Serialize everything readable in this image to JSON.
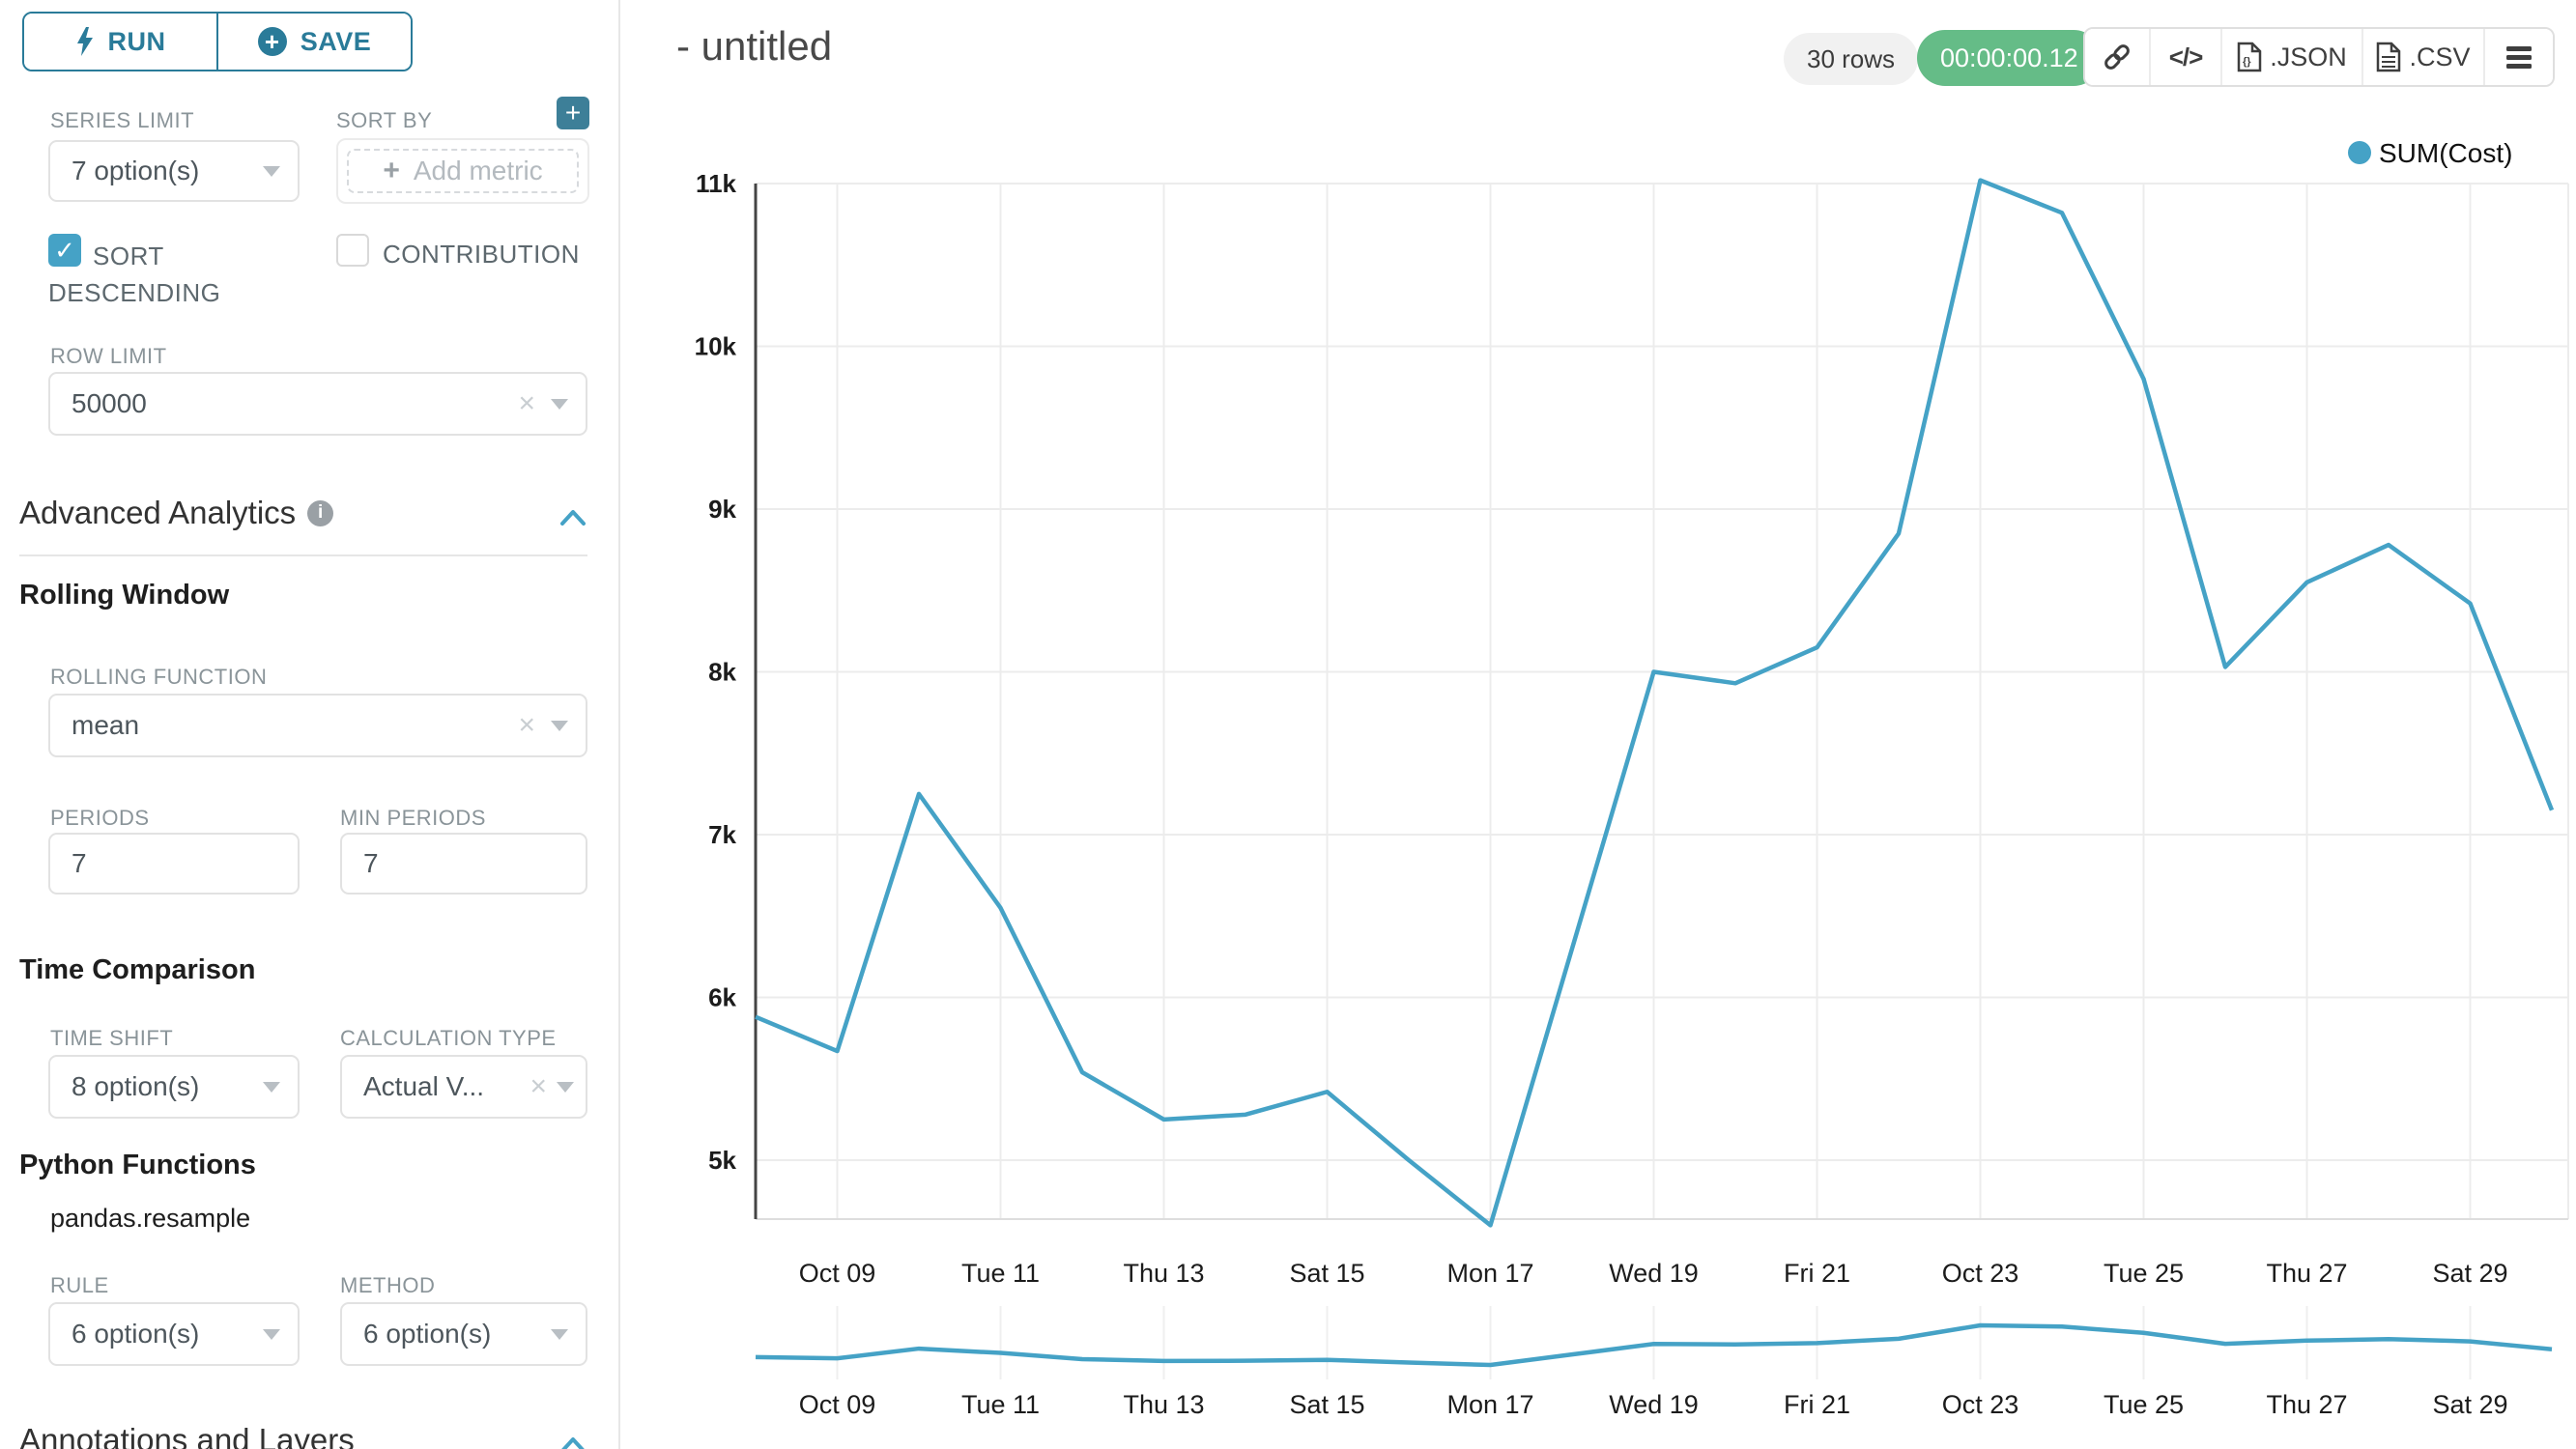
{
  "sidebar": {
    "run_label": "RUN",
    "save_label": "SAVE",
    "series_limit_label": "SERIES LIMIT",
    "series_limit_value": "7 option(s)",
    "sort_by_label": "SORT BY",
    "add_metric_label": "Add metric",
    "sort_descending_label": "SORT DESCENDING",
    "contribution_label": "CONTRIBUTION",
    "row_limit_label": "ROW LIMIT",
    "row_limit_value": "50000",
    "advanced_analytics_title": "Advanced Analytics",
    "rolling_window_title": "Rolling Window",
    "rolling_function_label": "ROLLING FUNCTION",
    "rolling_function_value": "mean",
    "periods_label": "PERIODS",
    "periods_value": "7",
    "min_periods_label": "MIN PERIODS",
    "min_periods_value": "7",
    "time_comparison_title": "Time Comparison",
    "time_shift_label": "TIME SHIFT",
    "time_shift_value": "8 option(s)",
    "calculation_type_label": "CALCULATION TYPE",
    "calculation_type_value": "Actual V...",
    "python_functions_title": "Python Functions",
    "pandas_resample_label": "pandas.resample",
    "rule_label": "RULE",
    "rule_value": "6 option(s)",
    "method_label": "METHOD",
    "method_value": "6 option(s)",
    "annotations_title": "Annotations and Layers"
  },
  "header": {
    "title": "- untitled",
    "rows_badge": "30 rows",
    "timer_badge": "00:00:00.12",
    "json_label": ".JSON",
    "csv_label": ".CSV"
  },
  "colors": {
    "accent_blue": "#45a2c6",
    "button_teal": "#2a7b99",
    "success_green": "#65bc87",
    "pill_gray": "#f1f1f1",
    "label_gray": "#8a9499",
    "text_dark": "#323232",
    "gridline": "#ececec",
    "axis_line": "#444444"
  },
  "chart_data": {
    "type": "line",
    "title": "",
    "legend": [
      {
        "name": "SUM(Cost)",
        "color": "#45a2c6"
      }
    ],
    "x": [
      "Oct 08",
      "Oct 09",
      "Oct 10",
      "Oct 11",
      "Oct 12",
      "Oct 13",
      "Oct 14",
      "Oct 15",
      "Oct 16",
      "Oct 17",
      "Oct 18",
      "Oct 19",
      "Oct 20",
      "Oct 21",
      "Oct 22",
      "Oct 23",
      "Oct 24",
      "Oct 25",
      "Oct 26",
      "Oct 27",
      "Oct 28",
      "Oct 29",
      "Oct 30"
    ],
    "series": [
      {
        "name": "SUM(Cost)",
        "values": [
          5880,
          5670,
          7250,
          6550,
          5540,
          5250,
          5280,
          5420,
          5000,
          4600,
          6300,
          8000,
          7930,
          8150,
          8850,
          11020,
          10820,
          9800,
          8030,
          8550,
          8780,
          8420,
          7150
        ]
      }
    ],
    "x_tick_labels": [
      "Oct 09",
      "Tue 11",
      "Thu 13",
      "Sat 15",
      "Mon 17",
      "Wed 19",
      "Fri 21",
      "Oct 23",
      "Tue 25",
      "Thu 27",
      "Sat 29"
    ],
    "x_tick_indices": [
      1,
      3,
      5,
      7,
      9,
      11,
      13,
      15,
      17,
      19,
      21
    ],
    "y_tick_labels": [
      "5k",
      "6k",
      "7k",
      "8k",
      "9k",
      "10k",
      "11k"
    ],
    "y_tick_values": [
      5000,
      6000,
      7000,
      8000,
      9000,
      10000,
      11000
    ],
    "ylim": [
      4600,
      11050
    ],
    "grid": true,
    "legend_position": "top-right",
    "has_mini_context_chart": true
  }
}
